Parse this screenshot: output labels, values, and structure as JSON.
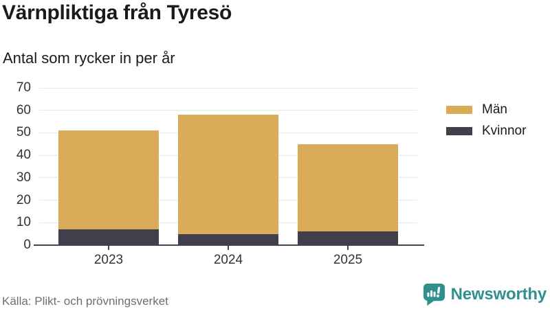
{
  "header": {
    "title": "Värnpliktiga från Tyresö",
    "subtitle": "Antal som rycker in per år"
  },
  "footer": {
    "source": "Källa: Plikt- och prövningsverket",
    "brand": "Newsworthy"
  },
  "icons": {
    "brand_logo": "speech-bubble-bar-chart-exclamation-icon"
  },
  "colors": {
    "men": "#daab58",
    "women": "#423f4d",
    "grid": "#e8e8e8",
    "axis": "#454253",
    "tick_text": "#333333",
    "muted_text": "#6f6f6f",
    "brand_teal": "#2f918e"
  },
  "chart_data": {
    "type": "bar",
    "stacked": true,
    "title": "Värnpliktiga från Tyresö",
    "subtitle": "Antal som rycker in per år",
    "categories": [
      "2023",
      "2024",
      "2025"
    ],
    "series": [
      {
        "name": "Män",
        "color": "#daab58",
        "values": [
          44,
          53,
          39
        ]
      },
      {
        "name": "Kvinnor",
        "color": "#423f4d",
        "values": [
          7,
          5,
          6
        ]
      }
    ],
    "stack_order_bottom_to_top": [
      "Kvinnor",
      "Män"
    ],
    "totals": [
      51,
      58,
      45
    ],
    "xlabel": "",
    "ylabel": "",
    "ylim": [
      0,
      70
    ],
    "yticks": [
      0,
      10,
      20,
      30,
      40,
      50,
      60,
      70
    ],
    "grid": true,
    "legend_position": "right"
  }
}
